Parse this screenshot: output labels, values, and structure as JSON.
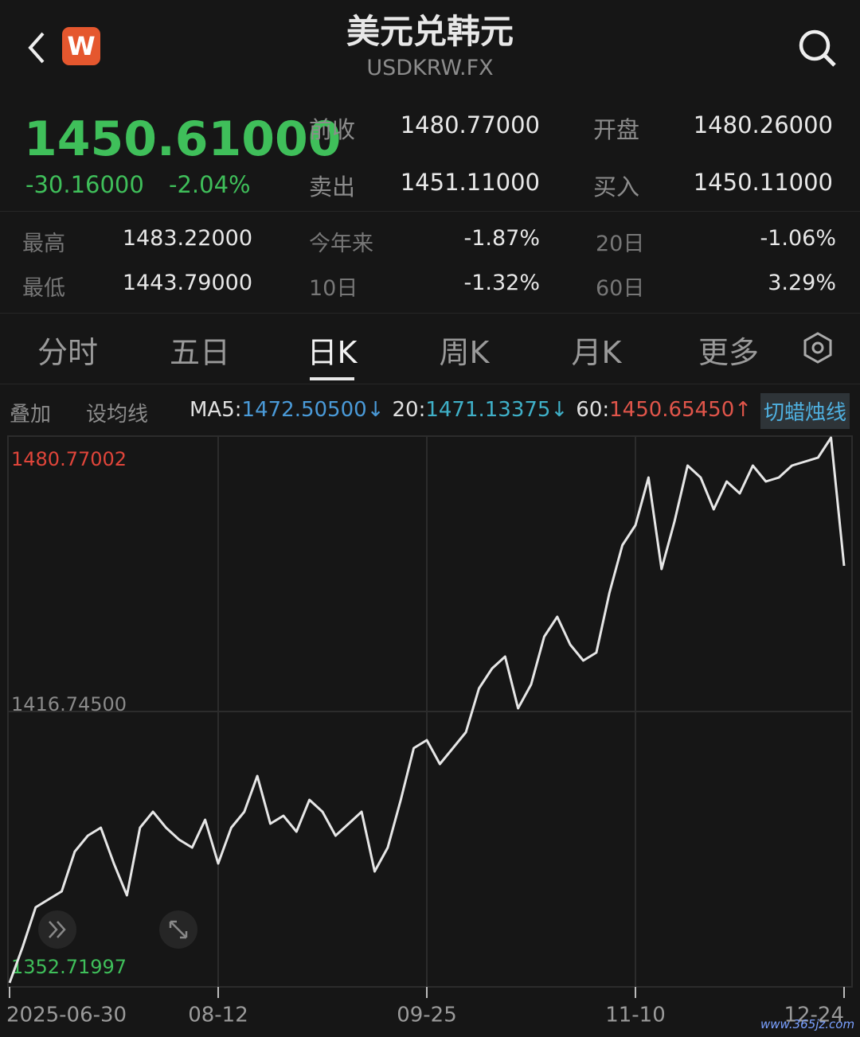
{
  "header": {
    "logo": "W",
    "title": "美元兑韩元",
    "subtitle": "USDKRW.FX"
  },
  "quote": {
    "price": "1450.61000",
    "change": "-30.16000",
    "change_pct": "-2.04%"
  },
  "stats": {
    "top": [
      [
        "前收",
        "1480.77000",
        "开盘",
        "1480.26000"
      ],
      [
        "卖出",
        "1451.11000",
        "买入",
        "1450.11000"
      ]
    ],
    "bottom": [
      [
        "最高",
        "1483.22000",
        "今年来",
        "-1.87%",
        "20日",
        "-1.06%"
      ],
      [
        "最低",
        "1443.79000",
        "10日",
        "-1.32%",
        "60日",
        "3.29%"
      ]
    ]
  },
  "tabs": {
    "items": [
      "分时",
      "五日",
      "日K",
      "周K",
      "月K",
      "更多"
    ],
    "active": 2
  },
  "ma_bar": {
    "overlay": "叠加",
    "set_ma": "设均线",
    "items": [
      {
        "label": "MA5:",
        "value": "1472.50500",
        "arrow": "↓",
        "color": "#4a9ad8"
      },
      {
        "label": "20:",
        "value": "1471.13375",
        "arrow": "↓",
        "color": "#3fb0c8"
      },
      {
        "label": "60:",
        "value": "1450.65450",
        "arrow": "↑",
        "color": "#e0554a"
      }
    ],
    "switch": "切蜡烛线"
  },
  "watermark": "www.365jz.com",
  "chart_data": {
    "type": "line",
    "color": "#e6e6e6",
    "categories": [
      "2025-06-30",
      null,
      null,
      null,
      null,
      null,
      null,
      null,
      null,
      null,
      null,
      null,
      null,
      null,
      null,
      null,
      "08-12",
      null,
      null,
      null,
      null,
      null,
      null,
      null,
      null,
      null,
      null,
      null,
      null,
      null,
      null,
      null,
      "09-25",
      null,
      null,
      null,
      null,
      null,
      null,
      null,
      null,
      null,
      null,
      null,
      null,
      null,
      null,
      null,
      "11-10",
      null,
      null,
      null,
      null,
      null,
      null,
      null,
      null,
      null,
      null,
      null,
      null,
      null,
      null,
      null,
      "12-24"
    ],
    "values": [
      1353.64,
      1361.97,
      1371.22,
      1373.07,
      1374.92,
      1384.17,
      1387.87,
      1389.73,
      1381.4,
      1374.0,
      1389.73,
      1393.43,
      1389.73,
      1386.95,
      1385.1,
      1391.58,
      1381.4,
      1389.73,
      1393.43,
      1401.75,
      1390.65,
      1392.5,
      1388.8,
      1396.2,
      1393.43,
      1387.87,
      1390.65,
      1393.43,
      1379.55,
      1385.1,
      1396.2,
      1408.23,
      1410.08,
      1404.53,
      1408.23,
      1411.93,
      1422.11,
      1426.74,
      1429.51,
      1417.48,
      1423.03,
      1434.14,
      1438.76,
      1432.29,
      1428.59,
      1430.44,
      1444.32,
      1455.42,
      1460.04,
      1471.15,
      1449.87,
      1460.97,
      1473.92,
      1471.15,
      1463.75,
      1470.22,
      1467.45,
      1473.92,
      1470.22,
      1471.15,
      1473.92,
      1474.85,
      1475.77,
      1480.4,
      1450.61
    ],
    "ylim": [
      1352.71997,
      1480.77002
    ],
    "yticks": [
      1352.71997,
      {
        "value": 1416.745,
        "label": "1416.74500"
      },
      1480.77002
    ],
    "ytick_colors": [
      "#3fbf5a",
      "#8a8a8a",
      "#e0453a"
    ],
    "grid": true
  }
}
